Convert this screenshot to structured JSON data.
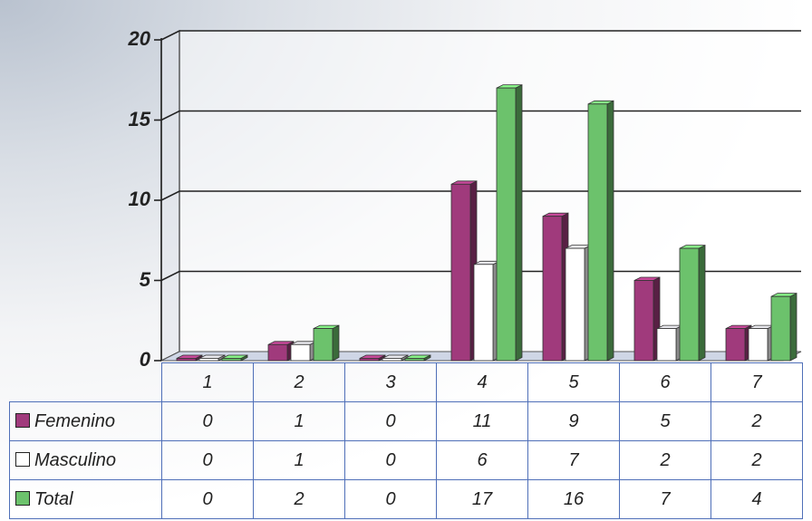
{
  "chart_data": {
    "type": "bar",
    "categories": [
      "1",
      "2",
      "3",
      "4",
      "5",
      "6",
      "7"
    ],
    "series": [
      {
        "name": "Femenino",
        "values": [
          0,
          1,
          0,
          11,
          9,
          5,
          2
        ],
        "color": "#a03a7c"
      },
      {
        "name": "Masculino",
        "values": [
          0,
          1,
          0,
          6,
          7,
          2,
          2
        ],
        "color": "#ffffff"
      },
      {
        "name": "Total",
        "values": [
          0,
          2,
          0,
          17,
          16,
          7,
          4
        ],
        "color": "#6cc26c"
      }
    ],
    "yticks": [
      "0",
      "5",
      "10",
      "15",
      "20"
    ],
    "ylim": [
      0,
      20
    ],
    "grid": true,
    "legend": "data-table",
    "three_d": true
  }
}
